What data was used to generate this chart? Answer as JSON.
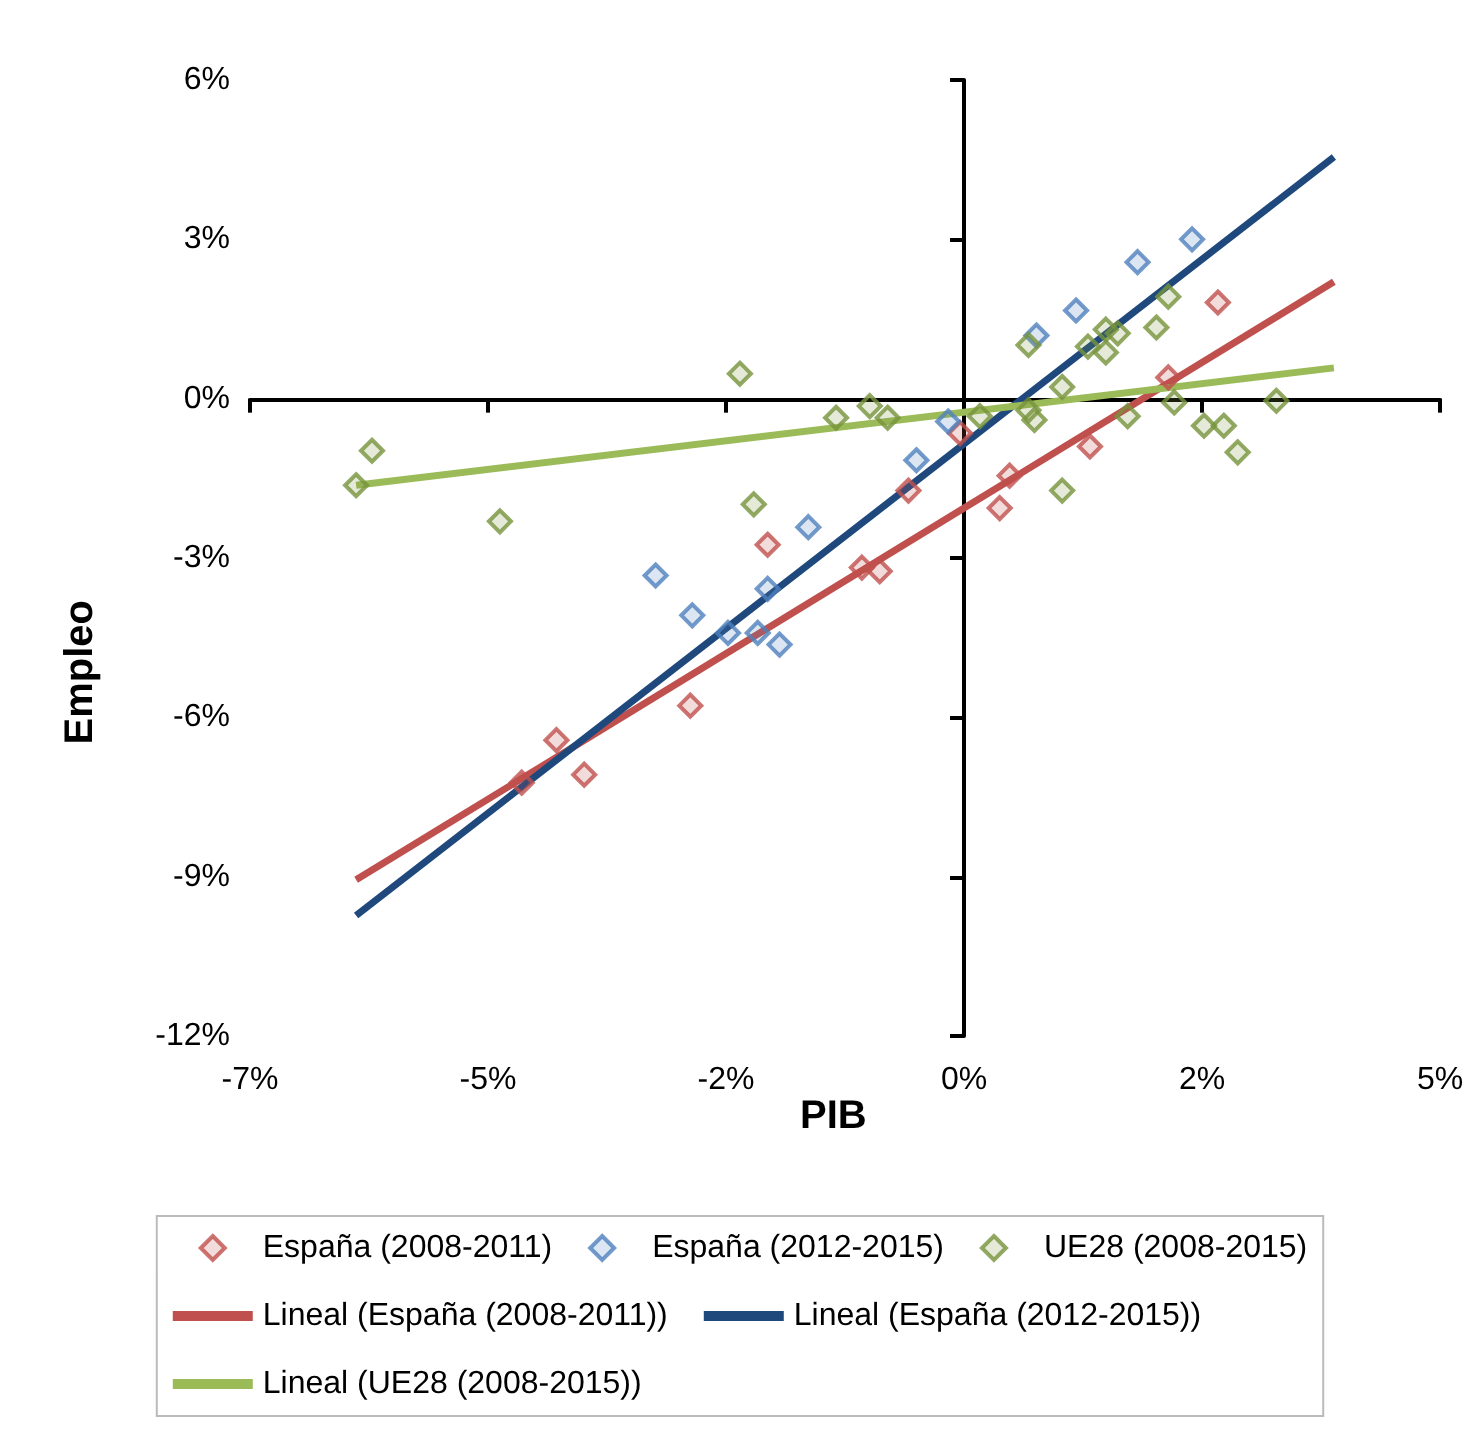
{
  "chart_data": {
    "type": "scatter",
    "xlabel": "PIB",
    "ylabel": "Empleo",
    "legend": "bottom",
    "xlim": [
      -7.2,
      4.8
    ],
    "xticks": [
      {
        "value": -7.2,
        "label": "-7%"
      },
      {
        "value": -4.8,
        "label": "-5%"
      },
      {
        "value": -2.4,
        "label": "-2%"
      },
      {
        "value": 0,
        "label": "0%"
      },
      {
        "value": 2.4,
        "label": "2%"
      },
      {
        "value": 4.8,
        "label": "5%"
      }
    ],
    "ylim": [
      -12,
      6
    ],
    "yticks": [
      {
        "value": -12,
        "label": "-12%"
      },
      {
        "value": -9,
        "label": "-9%"
      },
      {
        "value": -6,
        "label": "-6%"
      },
      {
        "value": -3,
        "label": "-3%"
      },
      {
        "value": 0,
        "label": "0%"
      },
      {
        "value": 3,
        "label": "3%"
      },
      {
        "value": 6,
        "label": "6%"
      }
    ],
    "series": [
      {
        "name": "España (2008-2011)",
        "marker": "diamond",
        "color": "#c0504d",
        "x": [
          -4.46,
          -4.11,
          -3.83,
          -2.76,
          -1.98,
          -1.03,
          -0.85,
          -0.56,
          -0.04,
          0.36,
          0.46,
          1.27,
          2.06,
          2.56
        ],
        "values": [
          -7.23,
          -6.43,
          -7.08,
          -5.78,
          -2.75,
          -3.18,
          -3.25,
          -1.73,
          -0.65,
          -2.06,
          -1.45,
          -0.9,
          0.4,
          1.81
        ]
      },
      {
        "name": "España (2012-2015)",
        "marker": "diamond",
        "color": "#4f81bd",
        "x": [
          -3.11,
          -2.74,
          -2.38,
          -2.08,
          -1.98,
          -1.86,
          -1.57,
          -0.48,
          -0.16,
          0.73,
          1.13,
          1.75,
          2.3
        ],
        "values": [
          -3.33,
          -4.08,
          -4.41,
          -4.41,
          -3.58,
          -4.63,
          -2.42,
          -1.16,
          -0.43,
          1.19,
          1.66,
          2.57,
          3.0
        ]
      },
      {
        "name": "UE28 (2008-2015)",
        "marker": "diamond",
        "color": "#77933c",
        "x": [
          -6.13,
          -5.97,
          -4.68,
          -2.26,
          -2.12,
          -1.29,
          -0.95,
          -0.77,
          0.16,
          0.65,
          0.65,
          0.71,
          0.99,
          0.99,
          1.25,
          1.43,
          1.43,
          1.55,
          1.65,
          1.94,
          2.06,
          2.12,
          2.42,
          2.62,
          2.76,
          3.15
        ],
        "values": [
          -1.63,
          -0.98,
          -2.31,
          0.47,
          -1.99,
          -0.36,
          -0.14,
          -0.36,
          -0.33,
          1.01,
          -0.22,
          -0.4,
          0.22,
          -1.73,
          0.98,
          1.3,
          0.87,
          1.23,
          -0.33,
          1.34,
          1.92,
          -0.07,
          -0.51,
          -0.51,
          -1.01,
          -0.04
        ]
      },
      {
        "name": "Lineal (España (2008-2011))",
        "type": "line",
        "marker": "none",
        "color": "#c0504d",
        "x": [
          -6.13,
          3.73
        ],
        "values": [
          -9.06,
          2.2
        ]
      },
      {
        "name": "Lineal (España (2012-2015))",
        "type": "line",
        "marker": "none",
        "color": "#1f497d",
        "x": [
          -6.13,
          3.73
        ],
        "values": [
          -9.73,
          4.55
        ]
      },
      {
        "name": "Lineal (UE28 (2008-2015))",
        "type": "line",
        "marker": "none",
        "color": "#9bbb59",
        "x": [
          -6.13,
          3.73
        ],
        "values": [
          -1.63,
          0.58
        ]
      }
    ]
  }
}
